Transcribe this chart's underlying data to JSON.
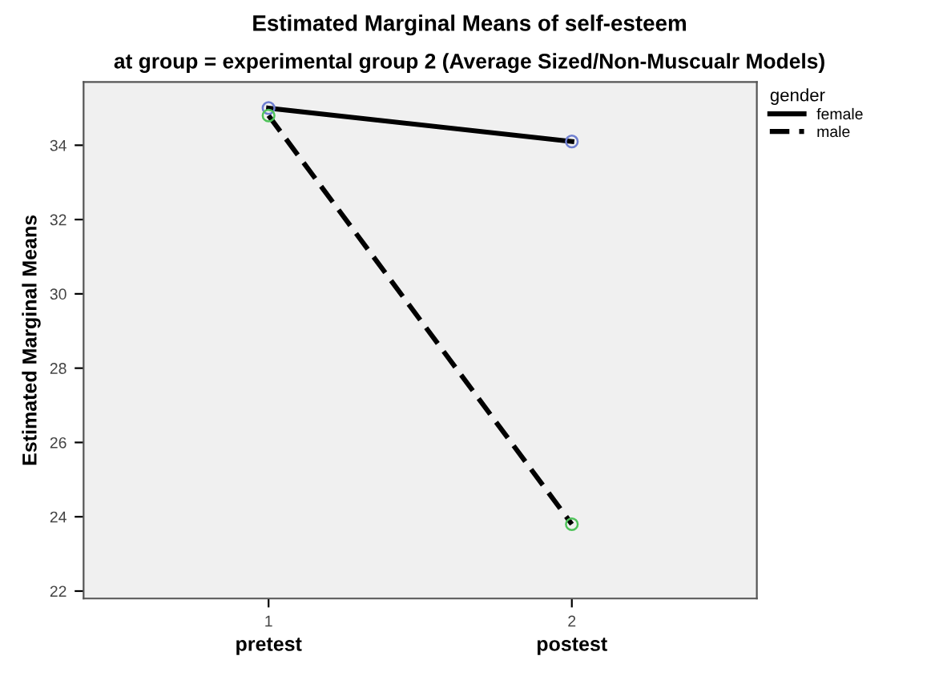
{
  "chart_data": {
    "type": "line",
    "title": "Estimated Marginal Means of self-esteem",
    "subtitle": "at group = experimental group 2 (Average Sized/Non-Muscualr Models)",
    "ylabel": "Estimated Marginal Means",
    "legend_title": "gender",
    "x": [
      1,
      2
    ],
    "series": [
      {
        "name": "female",
        "color": "#000000",
        "colors": [
          "#6f7fd0",
          "#6f7fd0"
        ],
        "line_style": "solid",
        "values": [
          35.0,
          34.1
        ]
      },
      {
        "name": "male",
        "color": "#000000",
        "colors": [
          "#4fc35a",
          "#4fc35a"
        ],
        "line_style": "dashed",
        "values": [
          34.8,
          23.8
        ]
      }
    ],
    "annotations": [
      "pretest",
      "postest"
    ],
    "xlim": [
      0.39,
      2.61
    ],
    "xticks": [
      1,
      2
    ],
    "ylim": [
      21.8,
      35.7
    ],
    "yticks": [
      22,
      24,
      26,
      28,
      30,
      32,
      34
    ],
    "marker": "circle",
    "grid": false,
    "legend": "right"
  }
}
